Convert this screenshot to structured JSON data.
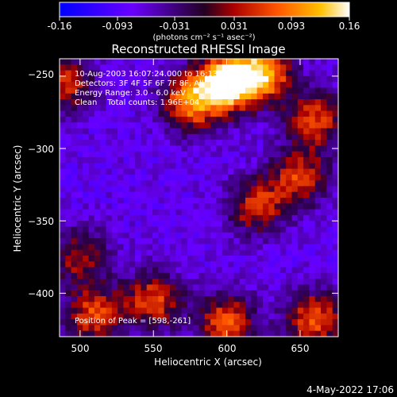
{
  "colorbar": {
    "ticks": [
      "-0.16",
      "-0.093",
      "-0.031",
      "0.031",
      "0.093",
      "0.16"
    ],
    "units_label": "(photons cm⁻² s⁻¹ asec⁻²)"
  },
  "title": "Reconstructed RHESSI Image",
  "overlay": {
    "time_range": "10-Aug-2003 16:07:24.000 to 16:13:24.000",
    "detectors": "Detectors: 3F 4F 5F 6F 7F 8F, All",
    "energy_range": "Energy Range: 3.0 - 6.0 keV",
    "method_counts": "Clean    Total counts: 1.96E+04",
    "peak": "Position of Peak = [598,-261]"
  },
  "chart_data": {
    "type": "heatmap",
    "title": "Reconstructed RHESSI Image",
    "xlabel": "Heliocentric X (arcsec)",
    "ylabel": "Heliocentric Y (arcsec)",
    "xlim": [
      486,
      676
    ],
    "ylim": [
      -430,
      -238
    ],
    "x_ticks": [
      500,
      550,
      600,
      650
    ],
    "y_ticks": [
      -250,
      -300,
      -350,
      -400
    ],
    "x_tick_labels": [
      "500",
      "550",
      "600",
      "650"
    ],
    "y_tick_labels": [
      "−250",
      "−300",
      "−350",
      "−400"
    ],
    "value_range": [
      -0.16,
      0.16
    ],
    "colormap": [
      "#0000ff",
      "#6600ff",
      "#ff0000",
      "#ff9900",
      "#ffffff"
    ],
    "peak_position": [
      598,
      -261
    ],
    "bright_sources": [
      {
        "x": 600,
        "y": -255,
        "level": 0.16
      },
      {
        "x": 625,
        "y": -248,
        "level": 0.11
      },
      {
        "x": 575,
        "y": -268,
        "level": 0.09
      },
      {
        "x": 490,
        "y": -255,
        "level": 0.05
      },
      {
        "x": 660,
        "y": -280,
        "level": 0.06
      },
      {
        "x": 650,
        "y": -320,
        "level": 0.05
      },
      {
        "x": 620,
        "y": -340,
        "level": 0.05
      },
      {
        "x": 550,
        "y": -405,
        "level": 0.06
      },
      {
        "x": 510,
        "y": -415,
        "level": 0.06
      },
      {
        "x": 600,
        "y": -420,
        "level": 0.07
      },
      {
        "x": 660,
        "y": -418,
        "level": 0.07
      },
      {
        "x": 500,
        "y": -375,
        "level": 0.03
      }
    ]
  },
  "footer": {
    "timestamp": "4-May-2022 17:06"
  }
}
